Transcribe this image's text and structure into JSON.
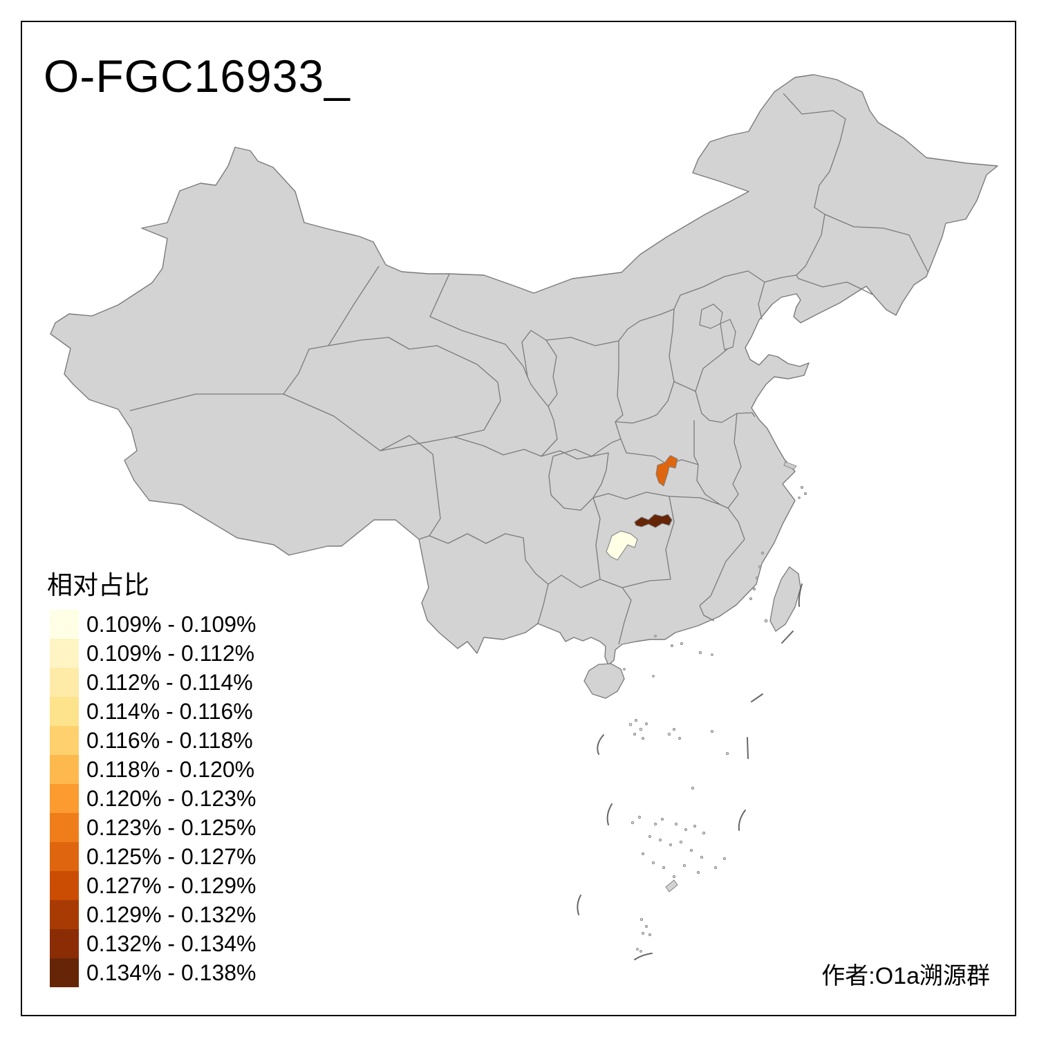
{
  "title": "O-FGC16933_",
  "legend": {
    "title": "相对占比",
    "items": [
      {
        "range": "0.109% - 0.109%",
        "color": "#FFFFE5"
      },
      {
        "range": "0.109% - 0.112%",
        "color": "#FEF4C4"
      },
      {
        "range": "0.112% - 0.114%",
        "color": "#FEEBA8"
      },
      {
        "range": "0.114% - 0.116%",
        "color": "#FEE38D"
      },
      {
        "range": "0.116% - 0.118%",
        "color": "#FED16E"
      },
      {
        "range": "0.118% - 0.120%",
        "color": "#FEB94E"
      },
      {
        "range": "0.120% - 0.123%",
        "color": "#FB9B30"
      },
      {
        "range": "0.123% - 0.125%",
        "color": "#EF7E1A"
      },
      {
        "range": "0.125% - 0.127%",
        "color": "#DF660E"
      },
      {
        "range": "0.127% - 0.129%",
        "color": "#CB4D04"
      },
      {
        "range": "0.129% - 0.132%",
        "color": "#A83B03"
      },
      {
        "range": "0.132% - 0.134%",
        "color": "#8B2D04"
      },
      {
        "range": "0.134% - 0.138%",
        "color": "#662506"
      }
    ]
  },
  "attribution": "作者:O1a溯源群",
  "map": {
    "land_color": "#D3D3D3",
    "border_color": "#7A7A7A",
    "background": "#FFFFFF",
    "frame_color": "#000000",
    "dash_line_color": "#666666",
    "highlighted_regions": [
      {
        "name": "hubei-prefecture",
        "range": "0.125% - 0.127%",
        "color": "#DF660E"
      },
      {
        "name": "hunan-prefecture-dark",
        "range": "0.134% - 0.138%",
        "color": "#662506"
      },
      {
        "name": "hunan-prefecture-light",
        "range": "0.109% - 0.109%",
        "color": "#FFFFE5"
      }
    ]
  }
}
